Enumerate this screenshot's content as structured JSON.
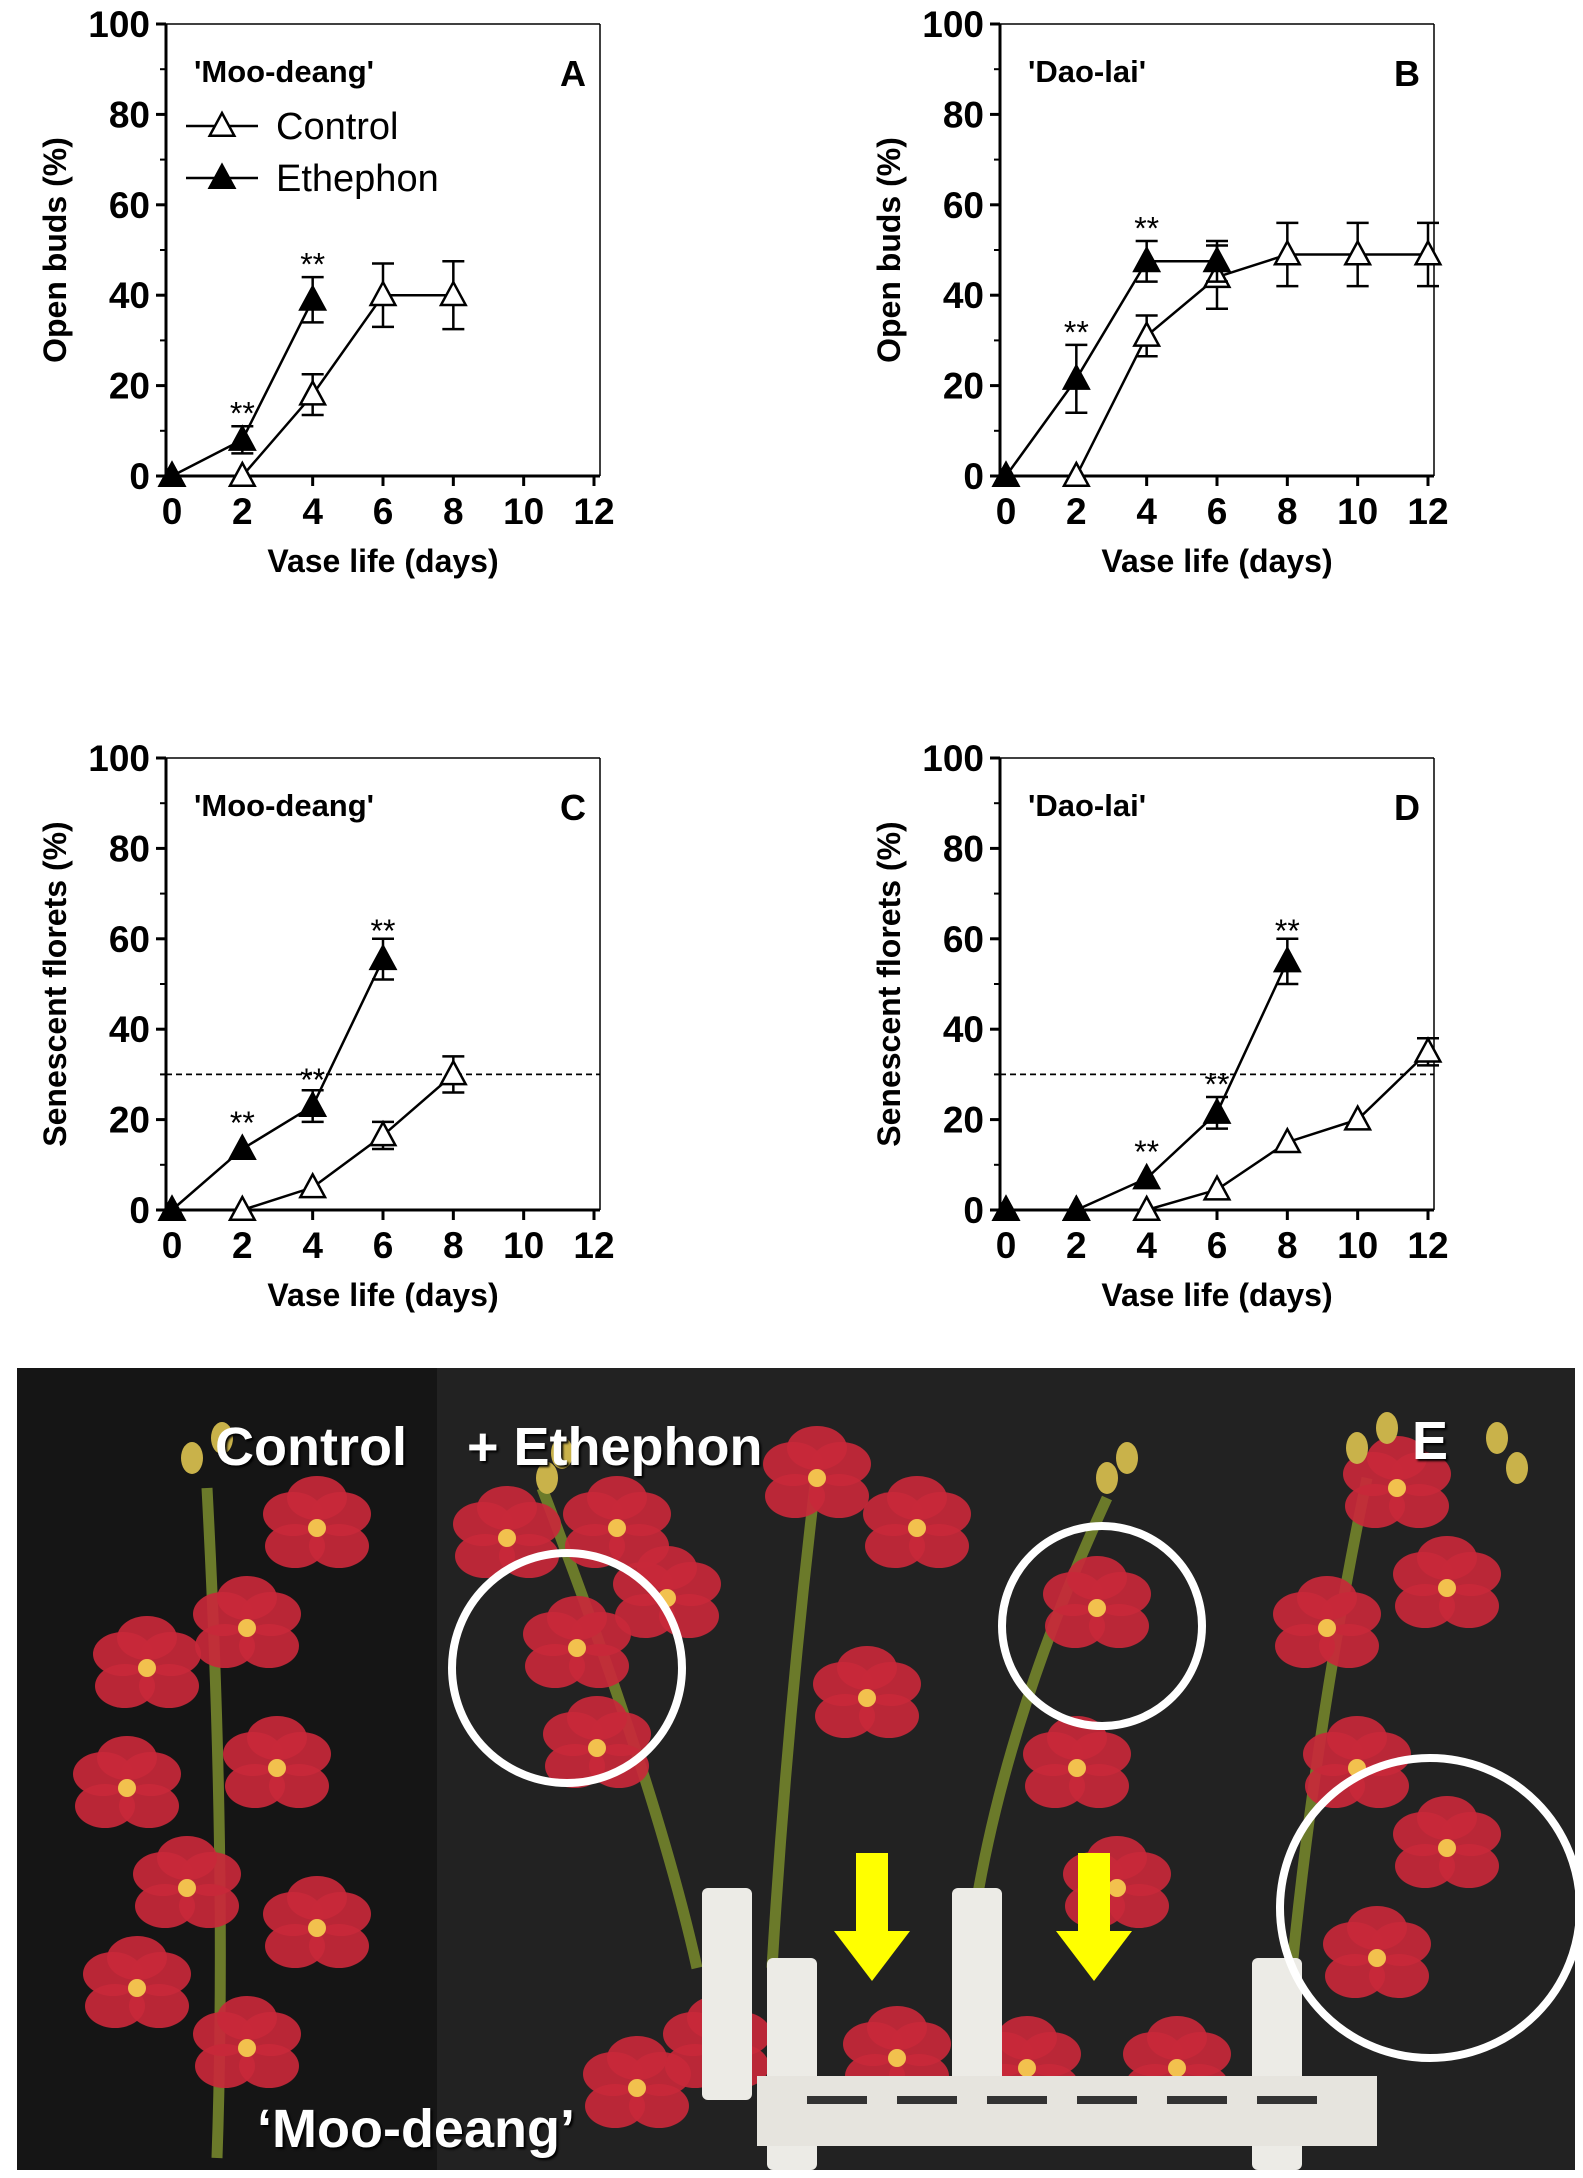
{
  "chart_data": [
    {
      "type": "line",
      "panel": "A",
      "cultivar": "'Moo-deang'",
      "xlabel": "Vase life (days)",
      "ylabel": "Open buds (%)",
      "xlim": [
        0,
        12
      ],
      "ylim": [
        0,
        100
      ],
      "xticks": [
        "0",
        "2",
        "4",
        "6",
        "8",
        "10",
        "12"
      ],
      "yticks": [
        "0",
        "20",
        "40",
        "60",
        "80",
        "100"
      ],
      "legend": {
        "placement": "top-left",
        "entries": [
          "Control",
          "Ethephon"
        ]
      },
      "series": [
        {
          "name": "Control",
          "marker": "open-triangle",
          "x": [
            0,
            2,
            4,
            6,
            8
          ],
          "y": [
            0,
            0,
            18,
            40,
            40
          ],
          "err": [
            0,
            0,
            4.5,
            7,
            7.5
          ]
        },
        {
          "name": "Ethephon",
          "marker": "filled-triangle",
          "x": [
            0,
            2,
            4
          ],
          "y": [
            0,
            8,
            39
          ],
          "err": [
            0,
            3,
            5
          ]
        }
      ],
      "annotations": [
        {
          "x": 2,
          "y": 14,
          "text": "**"
        },
        {
          "x": 4,
          "y": 47,
          "text": "**"
        }
      ]
    },
    {
      "type": "line",
      "panel": "B",
      "cultivar": "'Dao-lai'",
      "xlabel": "Vase life (days)",
      "ylabel": "Open buds (%)",
      "xlim": [
        0,
        12
      ],
      "ylim": [
        0,
        100
      ],
      "xticks": [
        "0",
        "2",
        "4",
        "6",
        "8",
        "10",
        "12"
      ],
      "yticks": [
        "0",
        "20",
        "40",
        "60",
        "80",
        "100"
      ],
      "series": [
        {
          "name": "Control",
          "marker": "open-triangle",
          "x": [
            0,
            2,
            4,
            6,
            8,
            10,
            12
          ],
          "y": [
            0,
            0,
            31,
            44,
            49,
            49,
            49
          ],
          "err": [
            0,
            0,
            4.5,
            7,
            7,
            7,
            7
          ]
        },
        {
          "name": "Ethephon",
          "marker": "filled-triangle",
          "x": [
            0,
            2,
            4,
            6
          ],
          "y": [
            0,
            21.5,
            47.5,
            47.5
          ],
          "err": [
            0,
            7.5,
            4.5,
            4.5
          ]
        }
      ],
      "annotations": [
        {
          "x": 2,
          "y": 32,
          "text": "**"
        },
        {
          "x": 4,
          "y": 55,
          "text": "**"
        }
      ]
    },
    {
      "type": "line",
      "panel": "C",
      "cultivar": "'Moo-deang'",
      "xlabel": "Vase life (days)",
      "ylabel": "Senescent florets (%)",
      "xlim": [
        0,
        12
      ],
      "ylim": [
        0,
        100
      ],
      "xticks": [
        "0",
        "2",
        "4",
        "6",
        "8",
        "10",
        "12"
      ],
      "yticks": [
        "0",
        "20",
        "40",
        "60",
        "80",
        "100"
      ],
      "reference_line": 30,
      "series": [
        {
          "name": "Control",
          "marker": "open-triangle",
          "x": [
            0,
            2,
            4,
            6,
            8
          ],
          "y": [
            0,
            0,
            5,
            16.5,
            30
          ],
          "err": [
            0,
            0,
            0,
            3,
            4
          ]
        },
        {
          "name": "Ethephon",
          "marker": "filled-triangle",
          "x": [
            0,
            2,
            4,
            6
          ],
          "y": [
            0,
            13.5,
            23,
            55.5
          ],
          "err": [
            0,
            0,
            3.5,
            4.5
          ]
        }
      ],
      "annotations": [
        {
          "x": 2,
          "y": 19.5,
          "text": "**"
        },
        {
          "x": 4,
          "y": 29,
          "text": "**"
        },
        {
          "x": 6,
          "y": 62,
          "text": "**"
        }
      ]
    },
    {
      "type": "line",
      "panel": "D",
      "cultivar": "'Dao-lai'",
      "xlabel": "Vase life (days)",
      "ylabel": "Senescent florets (%)",
      "xlim": [
        0,
        12
      ],
      "ylim": [
        0,
        100
      ],
      "xticks": [
        "0",
        "2",
        "4",
        "6",
        "8",
        "10",
        "12"
      ],
      "yticks": [
        "0",
        "20",
        "40",
        "60",
        "80",
        "100"
      ],
      "reference_line": 30,
      "series": [
        {
          "name": "Control",
          "marker": "open-triangle",
          "x": [
            0,
            2,
            4,
            6,
            8,
            10,
            12
          ],
          "y": [
            0,
            0,
            0,
            4.5,
            15,
            20,
            35
          ],
          "err": [
            0,
            0,
            0,
            0,
            0,
            0,
            3
          ]
        },
        {
          "name": "Ethephon",
          "marker": "filled-triangle",
          "x": [
            0,
            2,
            4,
            6,
            8
          ],
          "y": [
            0,
            0,
            7,
            21.5,
            55
          ],
          "err": [
            0,
            0,
            0,
            3.5,
            5
          ]
        }
      ],
      "annotations": [
        {
          "x": 4,
          "y": 13,
          "text": "**"
        },
        {
          "x": 6,
          "y": 28,
          "text": "**"
        },
        {
          "x": 8,
          "y": 62,
          "text": "**"
        }
      ]
    }
  ],
  "photo": {
    "panel": "E",
    "label_control": "Control",
    "label_treatment": "+ Ethephon",
    "caption": "‘Moo-deang’",
    "highlight_color": "#ffffff",
    "arrow_color": "#ffff00",
    "flower_color": "#c8283a"
  }
}
